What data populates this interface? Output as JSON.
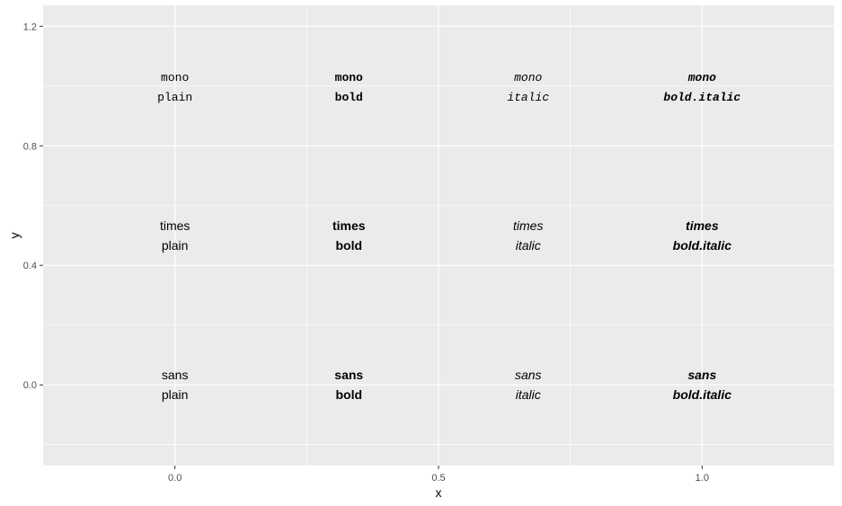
{
  "chart_data": {
    "type": "scatter",
    "title": "",
    "xlabel": "x",
    "ylabel": "y",
    "xlim": [
      -0.25,
      1.25
    ],
    "ylim": [
      -0.27,
      1.27
    ],
    "x_ticks": [
      {
        "value": 0.0,
        "label": "0.0"
      },
      {
        "value": 0.5,
        "label": "0.5"
      },
      {
        "value": 1.0,
        "label": "1.0"
      }
    ],
    "y_ticks": [
      {
        "value": 0.0,
        "label": "0.0"
      },
      {
        "value": 0.4,
        "label": "0.4"
      },
      {
        "value": 0.8,
        "label": "0.8"
      },
      {
        "value": 1.2,
        "label": "1.2"
      }
    ],
    "grid": true,
    "panel_color": "#ebebeb",
    "grid_color": "#ffffff",
    "text_color": "#000000",
    "points": [
      {
        "x": 0.0,
        "y": 0.0,
        "family": "sans",
        "face": "plain",
        "label": "sans\nplain"
      },
      {
        "x": 0.33,
        "y": 0.0,
        "family": "sans",
        "face": "bold",
        "label": "sans\nbold"
      },
      {
        "x": 0.67,
        "y": 0.0,
        "family": "sans",
        "face": "italic",
        "label": "sans\nitalic"
      },
      {
        "x": 1.0,
        "y": 0.0,
        "family": "sans",
        "face": "bold.italic",
        "label": "sans\nbold.italic"
      },
      {
        "x": 0.0,
        "y": 0.5,
        "family": "times",
        "face": "plain",
        "label": "times\nplain"
      },
      {
        "x": 0.33,
        "y": 0.5,
        "family": "times",
        "face": "bold",
        "label": "times\nbold"
      },
      {
        "x": 0.67,
        "y": 0.5,
        "family": "times",
        "face": "italic",
        "label": "times\nitalic"
      },
      {
        "x": 1.0,
        "y": 0.5,
        "family": "times",
        "face": "bold.italic",
        "label": "times\nbold.italic"
      },
      {
        "x": 0.0,
        "y": 1.0,
        "family": "mono",
        "face": "plain",
        "label": "mono\nplain"
      },
      {
        "x": 0.33,
        "y": 1.0,
        "family": "mono",
        "face": "bold",
        "label": "mono\nbold"
      },
      {
        "x": 0.67,
        "y": 1.0,
        "family": "mono",
        "face": "italic",
        "label": "mono\nitalic"
      },
      {
        "x": 1.0,
        "y": 1.0,
        "family": "mono",
        "face": "bold.italic",
        "label": "mono\nbold.italic"
      }
    ]
  }
}
